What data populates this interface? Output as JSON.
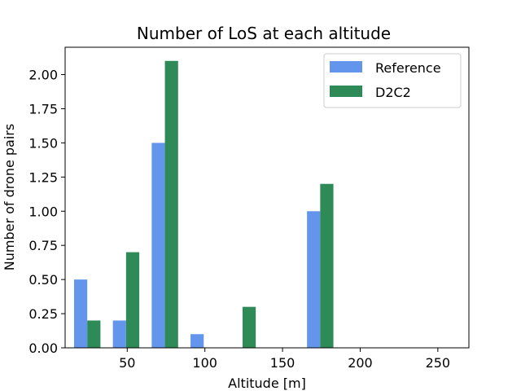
{
  "chart_data": {
    "type": "bar",
    "title": "Number of LoS at each altitude",
    "xlabel": "Altitude [m]",
    "ylabel": "Number of drone pairs",
    "xlim": [
      10,
      270
    ],
    "ylim": [
      0,
      2.2
    ],
    "xticks": [
      50,
      100,
      150,
      200,
      250
    ],
    "yticks": [
      "0.00",
      "0.25",
      "0.50",
      "0.75",
      "1.00",
      "1.25",
      "1.50",
      "1.75",
      "2.00"
    ],
    "grid": false,
    "legend_position": "top-right",
    "series": [
      {
        "name": "Reference",
        "color": "#6495ED",
        "points": [
          {
            "x": 20,
            "y": 0.5
          },
          {
            "x": 45,
            "y": 0.2
          },
          {
            "x": 70,
            "y": 1.5
          },
          {
            "x": 95,
            "y": 0.1
          },
          {
            "x": 170,
            "y": 1.0
          }
        ]
      },
      {
        "name": "D2C2",
        "color": "#2E8B57",
        "points": [
          {
            "x": 28.5,
            "y": 0.2
          },
          {
            "x": 53.5,
            "y": 0.7
          },
          {
            "x": 78.5,
            "y": 2.1
          },
          {
            "x": 128.5,
            "y": 0.3
          },
          {
            "x": 178.5,
            "y": 1.2
          }
        ]
      }
    ],
    "bar_width": 8.5
  }
}
